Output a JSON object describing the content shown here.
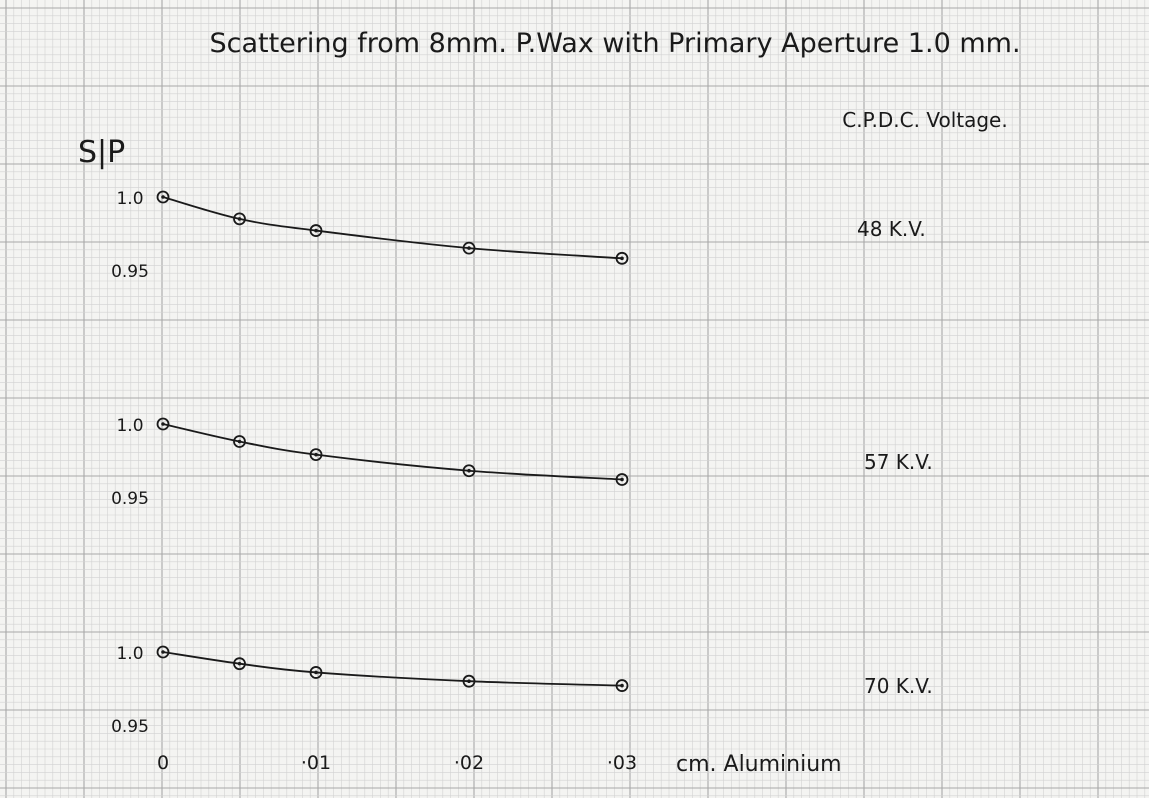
{
  "page": {
    "title": "Scattering from 8mm. P.Wax with Primary Aperture 1.0 mm.",
    "voltage_heading": "C.P.D.C. Voltage.",
    "y_axis_label": "S|P",
    "x_axis_label": "cm. Aluminium"
  },
  "colors": {
    "paper": "#f4f4f2",
    "grid_minor": "#d2d2d2",
    "grid_major": "#a8a8a8",
    "ink": "#1a1a1a"
  },
  "chart_data": [
    {
      "type": "line",
      "voltage_label": "48 K.V.",
      "x": [
        0,
        0.005,
        0.01,
        0.02,
        0.03
      ],
      "y": [
        1.0,
        0.985,
        0.977,
        0.965,
        0.958
      ],
      "y_ticks": [
        {
          "value": 1.0,
          "label": "1.0"
        },
        {
          "value": 0.95,
          "label": "0.95"
        }
      ],
      "ylim": [
        0.95,
        1.0
      ]
    },
    {
      "type": "line",
      "voltage_label": "57 K.V.",
      "x": [
        0,
        0.005,
        0.01,
        0.02,
        0.03
      ],
      "y": [
        1.0,
        0.988,
        0.979,
        0.968,
        0.962
      ],
      "y_ticks": [
        {
          "value": 1.0,
          "label": "1.0"
        },
        {
          "value": 0.95,
          "label": "0.95"
        }
      ],
      "ylim": [
        0.95,
        1.0
      ]
    },
    {
      "type": "line",
      "voltage_label": "70 K.V.",
      "x": [
        0,
        0.005,
        0.01,
        0.02,
        0.03
      ],
      "y": [
        1.0,
        0.992,
        0.986,
        0.98,
        0.977
      ],
      "y_ticks": [
        {
          "value": 1.0,
          "label": "1.0"
        },
        {
          "value": 0.95,
          "label": "0.95"
        }
      ],
      "ylim": [
        0.95,
        1.0
      ]
    }
  ],
  "x_ticks": [
    {
      "value": 0,
      "label": "0"
    },
    {
      "value": 0.01,
      "label": "·01"
    },
    {
      "value": 0.02,
      "label": "·02"
    },
    {
      "value": 0.03,
      "label": "·03"
    }
  ],
  "xlim": [
    0,
    0.03
  ]
}
